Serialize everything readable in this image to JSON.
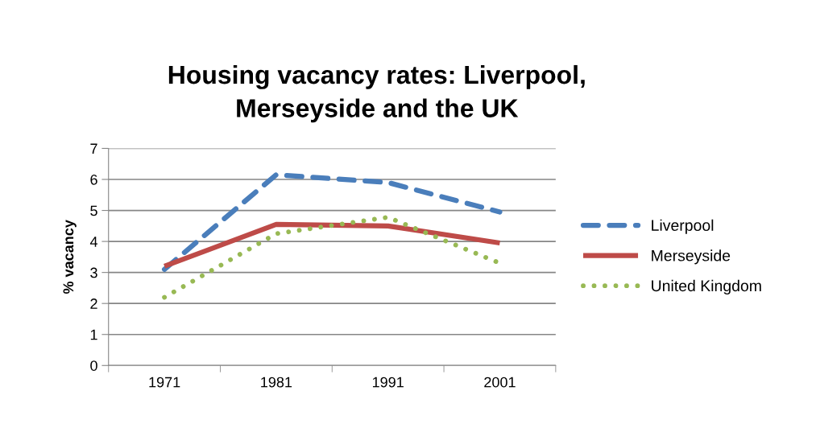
{
  "chart_data": {
    "type": "line",
    "title": "Housing vacancy rates: Liverpool,\nMerseyside and the UK",
    "ylabel": "% vacancy",
    "categories": [
      "1971",
      "1981",
      "1991",
      "2001"
    ],
    "series": [
      {
        "name": "Liverpool",
        "color": "#4a7ebb",
        "values": [
          3.1,
          6.15,
          5.9,
          4.95
        ],
        "line_style": "dashed"
      },
      {
        "name": "Merseyside",
        "color": "#be4b48",
        "values": [
          3.2,
          4.55,
          4.5,
          3.95
        ],
        "line_style": "solid"
      },
      {
        "name": "United Kingdom",
        "color": "#98b954",
        "values": [
          2.2,
          4.25,
          4.78,
          3.3
        ],
        "line_style": "dotted"
      }
    ],
    "ylim": [
      0,
      7
    ],
    "yticks": [
      0,
      1,
      2,
      3,
      4,
      5,
      6,
      7
    ],
    "grid": "y",
    "legend": "right",
    "marker": "none"
  }
}
